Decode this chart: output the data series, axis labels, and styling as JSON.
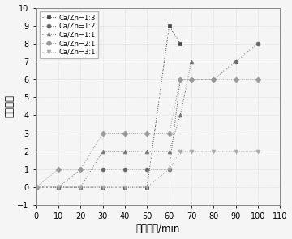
{
  "title": "",
  "xlabel": "老化时间/min",
  "ylabel": "样片色度",
  "xlim": [
    0,
    110
  ],
  "ylim": [
    -1,
    10
  ],
  "xticks": [
    0,
    10,
    20,
    30,
    40,
    50,
    60,
    70,
    80,
    90,
    100,
    110
  ],
  "yticks": [
    -1,
    0,
    1,
    2,
    3,
    4,
    5,
    6,
    7,
    8,
    9,
    10
  ],
  "series": [
    {
      "label": "Ca/Zn=1:3",
      "x": [
        0,
        10,
        20,
        30,
        40,
        50,
        60,
        65
      ],
      "y": [
        0,
        0,
        0,
        0,
        0,
        0,
        9,
        8
      ],
      "marker": "s",
      "color": "#444444",
      "linestyle": ":"
    },
    {
      "label": "Ca/Zn=1:2",
      "x": [
        0,
        10,
        20,
        30,
        40,
        50,
        60,
        65,
        70,
        80,
        90,
        100
      ],
      "y": [
        0,
        0,
        1,
        1,
        1,
        1,
        1,
        6,
        6,
        6,
        7,
        8
      ],
      "marker": "o",
      "color": "#666666",
      "linestyle": ":"
    },
    {
      "label": "Ca/Zn=1:1",
      "x": [
        0,
        10,
        20,
        30,
        40,
        50,
        60,
        65,
        70
      ],
      "y": [
        0,
        0,
        0,
        2,
        2,
        2,
        2,
        4,
        7
      ],
      "marker": "^",
      "color": "#777777",
      "linestyle": ":"
    },
    {
      "label": "Ca/Zn=2:1",
      "x": [
        0,
        10,
        20,
        30,
        40,
        50,
        60,
        65,
        70,
        80,
        90,
        100
      ],
      "y": [
        0,
        1,
        1,
        3,
        3,
        3,
        3,
        6,
        6,
        6,
        6,
        6
      ],
      "marker": "D",
      "color": "#999999",
      "linestyle": ":"
    },
    {
      "label": "Ca/Zn=3:1",
      "x": [
        0,
        10,
        20,
        30,
        40,
        50,
        60,
        65,
        70,
        80,
        90,
        100
      ],
      "y": [
        0,
        0,
        0,
        0,
        0,
        0,
        1,
        2,
        2,
        2,
        2,
        2
      ],
      "marker": "v",
      "color": "#aaaaaa",
      "linestyle": ":"
    }
  ],
  "legend_fontsize": 6,
  "axis_fontsize": 8.5,
  "tick_fontsize": 7,
  "background_color": "#f5f5f5",
  "grid_color": "#d0d0d0"
}
